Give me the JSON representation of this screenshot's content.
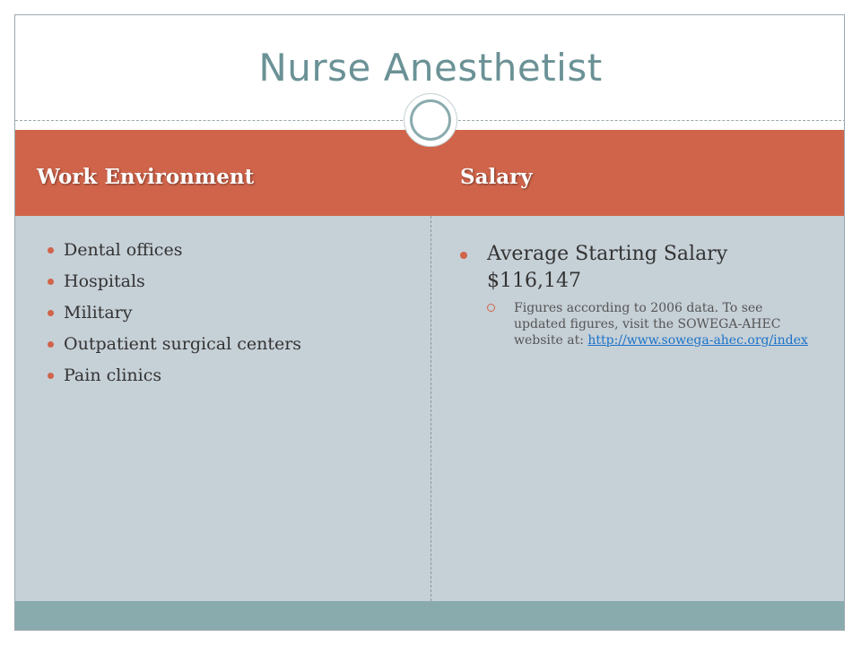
{
  "title": "Nurse Anesthetist",
  "columns": {
    "left": {
      "heading": "Work Environment",
      "items": [
        "Dental offices",
        "Hospitals",
        "Military",
        "Outpatient surgical centers",
        "Pain clinics"
      ]
    },
    "right": {
      "heading": "Salary",
      "main_line1": "Average Starting Salary",
      "main_line2": "$116,147",
      "note_text": "Figures according to 2006 data. To see updated figures, visit the SOWEGA-AHEC website at: ",
      "link_text": "http://www.sowega-ahec.org/index"
    }
  },
  "colors": {
    "accent": "#d0644a",
    "title": "#6b9296",
    "content_bg": "#c6d0d7",
    "footer": "#8aabae",
    "link": "#1a73c9"
  }
}
